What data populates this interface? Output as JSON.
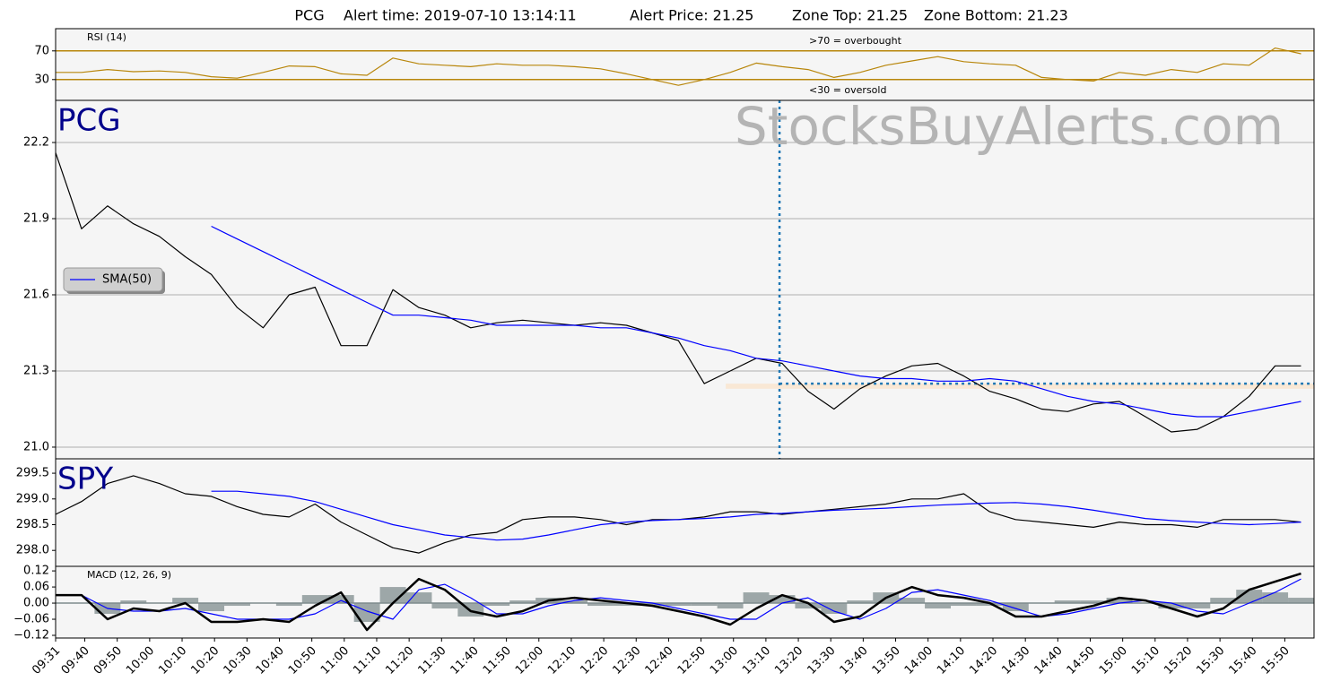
{
  "header": {
    "symbol": "PCG",
    "alert_time": "Alert time: 2019-07-10 13:14:11",
    "alert_price": "Alert Price: 21.25",
    "zone_top": "Zone Top: 21.25",
    "zone_bottom": "Zone Bottom: 21.23"
  },
  "watermark": "StocksBuyAlerts.com",
  "chart_data": [
    {
      "type": "line",
      "label_style": "small",
      "x": [
        571,
        579,
        587,
        595,
        603,
        611,
        619,
        627,
        635,
        643,
        651,
        659,
        667,
        675,
        683,
        691,
        699,
        707,
        715,
        723,
        731,
        739,
        747,
        755,
        763,
        771,
        779,
        787,
        795,
        803,
        811,
        819,
        827,
        835,
        843,
        851,
        859,
        867,
        875,
        883,
        891,
        899,
        907,
        915,
        923,
        931,
        939,
        947,
        955
      ],
      "xlim": [
        571,
        959
      ],
      "ylim": [
        1,
        101
      ],
      "yticks": [
        30,
        70
      ],
      "tick_line_color": "#b8860b",
      "series": [
        {
          "name": "RSI (14)",
          "color": "#b8860b",
          "values": [
            40,
            40,
            44,
            41,
            42,
            40,
            34,
            32,
            40,
            49,
            48,
            38,
            36,
            60,
            52,
            50,
            48,
            52,
            50,
            50,
            48,
            45,
            38,
            30,
            22,
            30,
            40,
            53,
            48,
            44,
            33,
            40,
            50,
            56,
            62,
            55,
            52,
            50,
            33,
            30,
            28,
            40,
            36,
            44,
            40,
            52,
            50,
            74,
            66
          ]
        }
      ],
      "annotations": [
        {
          "text": ">70 = overbought",
          "y": 70
        },
        {
          "text": "<30 = oversold",
          "y": 30
        }
      ]
    },
    {
      "type": "line",
      "label_style": "large",
      "x": [
        571,
        579,
        587,
        595,
        603,
        611,
        619,
        627,
        635,
        643,
        651,
        659,
        667,
        675,
        683,
        691,
        699,
        707,
        715,
        723,
        731,
        739,
        747,
        755,
        763,
        771,
        779,
        787,
        795,
        803,
        811,
        819,
        827,
        835,
        843,
        851,
        859,
        867,
        875,
        883,
        891,
        899,
        907,
        915,
        923,
        931,
        939,
        947,
        955
      ],
      "xlim": [
        571,
        959
      ],
      "ylim": [
        20.954,
        22.366
      ],
      "yticks": [
        22.2,
        21.9,
        21.6,
        21.3,
        {
          "value": 21,
          "label": "21.0"
        }
      ],
      "grid": true,
      "legend_loc": "left",
      "series": [
        {
          "name": "PCG",
          "color": "#000000",
          "values": [
            22.16,
            21.86,
            21.95,
            21.88,
            21.83,
            21.75,
            21.68,
            21.55,
            21.47,
            21.6,
            21.63,
            21.4,
            21.4,
            21.62,
            21.55,
            21.52,
            21.47,
            21.49,
            21.5,
            21.49,
            21.48,
            21.49,
            21.48,
            21.45,
            21.42,
            21.25,
            21.3,
            21.35,
            21.33,
            21.22,
            21.15,
            21.23,
            21.28,
            21.32,
            21.33,
            21.28,
            21.22,
            21.19,
            21.15,
            21.14,
            21.17,
            21.18,
            21.12,
            21.06,
            21.07,
            21.12,
            21.2,
            21.32,
            21.32
          ]
        },
        {
          "name": "SMA(50)",
          "color": "#0000ff",
          "legend": true,
          "values": [
            null,
            null,
            null,
            null,
            null,
            null,
            21.87,
            21.82,
            21.77,
            21.72,
            21.67,
            21.62,
            21.57,
            21.52,
            21.52,
            21.51,
            21.5,
            21.48,
            21.48,
            21.48,
            21.48,
            21.47,
            21.47,
            21.45,
            21.43,
            21.4,
            21.38,
            21.35,
            21.34,
            21.32,
            21.3,
            21.28,
            21.27,
            21.27,
            21.26,
            21.26,
            21.27,
            21.26,
            21.23,
            21.2,
            21.18,
            21.17,
            21.15,
            21.13,
            21.12,
            21.12,
            21.14,
            21.16,
            21.18
          ]
        }
      ],
      "alert_x": 794.2,
      "zone": {
        "top": 21.25,
        "bottom": 21.23,
        "color": "#1f77b4"
      }
    },
    {
      "type": "line",
      "label_style": "large",
      "x": [
        571,
        579,
        587,
        595,
        603,
        611,
        619,
        627,
        635,
        643,
        651,
        659,
        667,
        675,
        683,
        691,
        699,
        707,
        715,
        723,
        731,
        739,
        747,
        755,
        763,
        771,
        779,
        787,
        795,
        803,
        811,
        819,
        827,
        835,
        843,
        851,
        859,
        867,
        875,
        883,
        891,
        899,
        907,
        915,
        923,
        931,
        939,
        947,
        955
      ],
      "xlim": [
        571,
        959
      ],
      "ylim": [
        297.69,
        299.78
      ],
      "yticks": [
        299.5,
        {
          "value": 299,
          "label": "299.0"
        },
        298.5,
        {
          "value": 298,
          "label": "298.0"
        }
      ],
      "series": [
        {
          "name": "SPY",
          "color": "#000000",
          "values": [
            298.7,
            298.95,
            299.3,
            299.45,
            299.3,
            299.1,
            299.05,
            298.85,
            298.7,
            298.65,
            298.9,
            298.55,
            298.3,
            298.05,
            297.95,
            298.15,
            298.3,
            298.35,
            298.6,
            298.65,
            298.65,
            298.6,
            298.5,
            298.6,
            298.6,
            298.65,
            298.75,
            298.75,
            298.7,
            298.75,
            298.8,
            298.85,
            298.9,
            299.0,
            299.0,
            299.1,
            298.75,
            298.6,
            298.55,
            298.5,
            298.45,
            298.55,
            298.5,
            298.5,
            298.45,
            298.6,
            298.6,
            298.6,
            298.55
          ]
        },
        {
          "name": "SMA(50)",
          "color": "#0000ff",
          "values": [
            null,
            null,
            null,
            null,
            null,
            null,
            299.15,
            299.15,
            299.1,
            299.05,
            298.95,
            298.8,
            298.65,
            298.5,
            298.4,
            298.3,
            298.25,
            298.2,
            298.22,
            298.3,
            298.4,
            298.5,
            298.55,
            298.58,
            298.6,
            298.62,
            298.65,
            298.7,
            298.72,
            298.75,
            298.78,
            298.8,
            298.82,
            298.85,
            298.88,
            298.9,
            298.92,
            298.93,
            298.9,
            298.85,
            298.78,
            298.7,
            298.62,
            298.58,
            298.55,
            298.52,
            298.5,
            298.52,
            298.55
          ]
        }
      ]
    },
    {
      "type": "line",
      "label_style": "small",
      "x": [
        571,
        579,
        587,
        595,
        603,
        611,
        619,
        627,
        635,
        643,
        651,
        659,
        667,
        675,
        683,
        691,
        699,
        707,
        715,
        723,
        731,
        739,
        747,
        755,
        763,
        771,
        779,
        787,
        795,
        803,
        811,
        819,
        827,
        835,
        843,
        851,
        859,
        867,
        875,
        883,
        891,
        899,
        907,
        915,
        923,
        931,
        939,
        947,
        955
      ],
      "xlim": [
        571,
        959
      ],
      "ylim": [
        -0.13,
        0.137
      ],
      "yticks": [
        0.12,
        0.06,
        {
          "value": 0,
          "label": "0.00"
        },
        {
          "value": -0.06,
          "label": "−0.06"
        },
        {
          "value": -0.12,
          "label": "−0.12"
        }
      ],
      "xticks": [
        {
          "value": 571,
          "label": "09:31"
        },
        {
          "value": 580,
          "label": "09:40"
        },
        {
          "value": 590,
          "label": "09:50"
        },
        {
          "value": 600,
          "label": "10:00"
        },
        {
          "value": 610,
          "label": "10:10"
        },
        {
          "value": 620,
          "label": "10:20"
        },
        {
          "value": 630,
          "label": "10:30"
        },
        {
          "value": 640,
          "label": "10:40"
        },
        {
          "value": 650,
          "label": "10:50"
        },
        {
          "value": 660,
          "label": "11:00"
        },
        {
          "value": 670,
          "label": "11:10"
        },
        {
          "value": 680,
          "label": "11:20"
        },
        {
          "value": 690,
          "label": "11:30"
        },
        {
          "value": 700,
          "label": "11:40"
        },
        {
          "value": 710,
          "label": "11:50"
        },
        {
          "value": 720,
          "label": "12:00"
        },
        {
          "value": 730,
          "label": "12:10"
        },
        {
          "value": 740,
          "label": "12:20"
        },
        {
          "value": 750,
          "label": "12:30"
        },
        {
          "value": 760,
          "label": "12:40"
        },
        {
          "value": 770,
          "label": "12:50"
        },
        {
          "value": 780,
          "label": "13:00"
        },
        {
          "value": 790,
          "label": "13:10"
        },
        {
          "value": 800,
          "label": "13:20"
        },
        {
          "value": 810,
          "label": "13:30"
        },
        {
          "value": 820,
          "label": "13:40"
        },
        {
          "value": 830,
          "label": "13:50"
        },
        {
          "value": 840,
          "label": "14:00"
        },
        {
          "value": 850,
          "label": "14:10"
        },
        {
          "value": 860,
          "label": "14:20"
        },
        {
          "value": 870,
          "label": "14:30"
        },
        {
          "value": 880,
          "label": "14:40"
        },
        {
          "value": 890,
          "label": "14:50"
        },
        {
          "value": 900,
          "label": "15:00"
        },
        {
          "value": 910,
          "label": "15:10"
        },
        {
          "value": 920,
          "label": "15:20"
        },
        {
          "value": 930,
          "label": "15:30"
        },
        {
          "value": 940,
          "label": "15:40"
        },
        {
          "value": 950,
          "label": "15:50"
        }
      ],
      "series": [
        {
          "style": "histogram",
          "color": "#7f8c8d",
          "values": [
            0,
            0,
            -0.04,
            0.01,
            0,
            0.02,
            -0.03,
            -0.01,
            0,
            -0.01,
            0.03,
            0.03,
            -0.07,
            0.06,
            0.04,
            -0.02,
            -0.05,
            -0.01,
            0.01,
            0.02,
            0.01,
            -0.01,
            -0.01,
            -0.01,
            -0.01,
            -0.01,
            -0.02,
            0.04,
            0.03,
            -0.02,
            -0.04,
            0.01,
            0.04,
            0.02,
            -0.02,
            -0.01,
            -0.01,
            -0.03,
            0,
            0.01,
            0.01,
            0.02,
            0,
            -0.02,
            -0.02,
            0.02,
            0.05,
            0.04,
            0.02
          ]
        },
        {
          "color": "#0000ff",
          "values": [
            0.03,
            0.03,
            -0.02,
            -0.03,
            -0.03,
            -0.02,
            -0.04,
            -0.06,
            -0.06,
            -0.06,
            -0.04,
            0.01,
            -0.03,
            -0.06,
            0.05,
            0.07,
            0.02,
            -0.04,
            -0.04,
            -0.01,
            0.01,
            0.02,
            0.01,
            0.0,
            -0.02,
            -0.04,
            -0.06,
            -0.06,
            0.0,
            0.02,
            -0.03,
            -0.06,
            -0.02,
            0.04,
            0.05,
            0.03,
            0.01,
            -0.02,
            -0.05,
            -0.04,
            -0.02,
            0.0,
            0.01,
            0.0,
            -0.03,
            -0.04,
            0.0,
            0.04,
            0.09
          ]
        },
        {
          "name": "MACD (12, 26, 9)",
          "color": "#000000",
          "width": 2.5,
          "values": [
            0.03,
            0.03,
            -0.06,
            -0.02,
            -0.03,
            0.0,
            -0.07,
            -0.07,
            -0.06,
            -0.07,
            -0.01,
            0.04,
            -0.1,
            0.0,
            0.09,
            0.05,
            -0.03,
            -0.05,
            -0.03,
            0.01,
            0.02,
            0.01,
            0.0,
            -0.01,
            -0.03,
            -0.05,
            -0.08,
            -0.02,
            0.03,
            0.0,
            -0.07,
            -0.05,
            0.02,
            0.06,
            0.03,
            0.02,
            0.0,
            -0.05,
            -0.05,
            -0.03,
            -0.01,
            0.02,
            0.01,
            -0.02,
            -0.05,
            -0.02,
            0.05,
            0.08,
            0.11
          ]
        }
      ]
    }
  ]
}
